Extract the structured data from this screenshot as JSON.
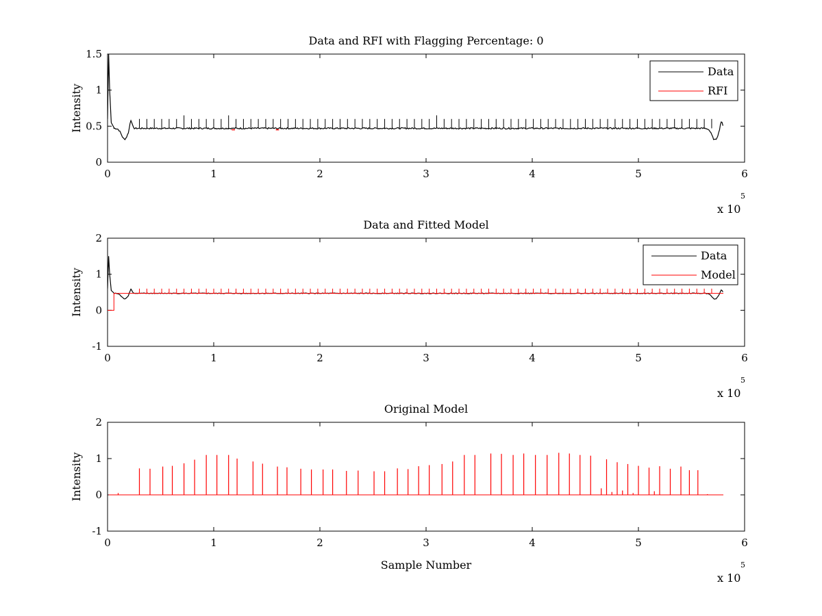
{
  "chart_data": [
    {
      "type": "line",
      "title": "Data and RFI with Flagging Percentage: 0",
      "xlabel": "",
      "ylabel": "Intensity",
      "xlim": [
        0,
        600000
      ],
      "ylim": [
        0,
        1.5
      ],
      "xticks": [
        0,
        1,
        2,
        3,
        4,
        5,
        6
      ],
      "yticks": [
        "0",
        "0.5",
        "1",
        "1.5"
      ],
      "x_multiplier": {
        "text": "x 10",
        "exp": "5"
      },
      "legend": {
        "position": "top-right",
        "entries": [
          "Data",
          "RFI"
        ]
      },
      "grid": false,
      "series": [
        {
          "name": "Data",
          "color": "#000000",
          "baseline": 0.47,
          "x_end": 580000,
          "initial_spike": {
            "x": [
              0,
              1000,
              2000,
              3500,
              6000
            ],
            "y": [
              0.6,
              1.5,
              1.0,
              0.55,
              0.48
            ]
          },
          "dips": [
            {
              "x": 16000,
              "depth": 0.15
            },
            {
              "x": 572000,
              "depth": 0.16
            }
          ],
          "bumps": [
            {
              "x": 22000,
              "y": 0.6
            },
            {
              "x": 578000,
              "y": 0.58
            }
          ],
          "spikes": {
            "start": 30000,
            "step": 7000,
            "heights": [
              0.6,
              0.6,
              0.6,
              0.6,
              0.6,
              0.6,
              0.65,
              0.6,
              0.6,
              0.6,
              0.6,
              0.6,
              0.65,
              0.6,
              0.6,
              0.6,
              0.6,
              0.6,
              0.6,
              0.6,
              0.6,
              0.6,
              0.6,
              0.6,
              0.6,
              0.6,
              0.6,
              0.6,
              0.6,
              0.6,
              0.6,
              0.6,
              0.6,
              0.6,
              0.6,
              0.6,
              0.6,
              0.6,
              0.6,
              0.6,
              0.65,
              0.6,
              0.6,
              0.6,
              0.6,
              0.6,
              0.6,
              0.6,
              0.6,
              0.6,
              0.6,
              0.6,
              0.6,
              0.6,
              0.6,
              0.6,
              0.6,
              0.6,
              0.6,
              0.6,
              0.6,
              0.6,
              0.6,
              0.6,
              0.6,
              0.6,
              0.6,
              0.6,
              0.6,
              0.6,
              0.6,
              0.6,
              0.6,
              0.6,
              0.6,
              0.6,
              0.6,
              0.6
            ]
          }
        },
        {
          "name": "RFI",
          "color": "#ff0000",
          "segments": [
            {
              "x": [
                117000,
                120000
              ],
              "y": 0.45
            },
            {
              "x": 160000,
              "y": 0.45
            }
          ]
        }
      ]
    },
    {
      "type": "line",
      "title": "Data and Fitted Model",
      "xlabel": "",
      "ylabel": "Intensity",
      "xlim": [
        0,
        600000
      ],
      "ylim": [
        -1,
        2
      ],
      "xticks": [
        0,
        1,
        2,
        3,
        4,
        5,
        6
      ],
      "yticks": [
        "-1",
        "0",
        "1",
        "2"
      ],
      "x_multiplier": {
        "text": "x 10",
        "exp": "5"
      },
      "legend": {
        "position": "top-right",
        "entries": [
          "Data",
          "Model"
        ]
      },
      "grid": false,
      "series": [
        {
          "name": "Data",
          "color": "#000000",
          "baseline": 0.47,
          "x_end": 580000,
          "initial_spike": {
            "x": [
              0,
              1000,
              2000,
              3500,
              6000
            ],
            "y": [
              0.6,
              1.5,
              1.0,
              0.55,
              0.48
            ]
          },
          "dips": [
            {
              "x": 16000,
              "depth": 0.15
            },
            {
              "x": 572000,
              "depth": 0.16
            }
          ],
          "bumps": [
            {
              "x": 22000,
              "y": 0.6
            },
            {
              "x": 578000,
              "y": 0.58
            }
          ]
        },
        {
          "name": "Model",
          "color": "#ff0000",
          "step": {
            "x_start": 0,
            "x_jump": 6000,
            "y_before": 0.0,
            "y_after": 0.47
          },
          "x_end": 580000,
          "spike_height": 0.6,
          "spikes_start": 30000,
          "spikes_step": 7000
        }
      ]
    },
    {
      "type": "line",
      "title": "Original Model",
      "xlabel": "Sample Number",
      "ylabel": "Intensity",
      "xlim": [
        0,
        600000
      ],
      "ylim": [
        -1,
        2
      ],
      "xticks": [
        0,
        1,
        2,
        3,
        4,
        5,
        6
      ],
      "yticks": [
        "-1",
        "0",
        "1",
        "2"
      ],
      "x_multiplier": {
        "text": "x 10",
        "exp": "5"
      },
      "legend": null,
      "grid": false,
      "series": [
        {
          "name": "",
          "color": "#ff0000",
          "baseline": 0.0,
          "x_start": 1000,
          "x_end": 580000,
          "spikes": [
            {
              "x": 10000,
              "y": 0.05
            },
            {
              "x": 30000,
              "y": 0.73
            },
            {
              "x": 40000,
              "y": 0.72
            },
            {
              "x": 52000,
              "y": 0.78
            },
            {
              "x": 61000,
              "y": 0.8
            },
            {
              "x": 72000,
              "y": 0.87
            },
            {
              "x": 82000,
              "y": 0.97
            },
            {
              "x": 93000,
              "y": 1.1
            },
            {
              "x": 103000,
              "y": 1.1
            },
            {
              "x": 114000,
              "y": 1.1
            },
            {
              "x": 122000,
              "y": 1.0
            },
            {
              "x": 137000,
              "y": 0.92
            },
            {
              "x": 146000,
              "y": 0.86
            },
            {
              "x": 160000,
              "y": 0.78
            },
            {
              "x": 169000,
              "y": 0.76
            },
            {
              "x": 182000,
              "y": 0.72
            },
            {
              "x": 192000,
              "y": 0.7
            },
            {
              "x": 203000,
              "y": 0.7
            },
            {
              "x": 212000,
              "y": 0.7
            },
            {
              "x": 225000,
              "y": 0.66
            },
            {
              "x": 236000,
              "y": 0.67
            },
            {
              "x": 251000,
              "y": 0.65
            },
            {
              "x": 261000,
              "y": 0.65
            },
            {
              "x": 273000,
              "y": 0.73
            },
            {
              "x": 283000,
              "y": 0.71
            },
            {
              "x": 293000,
              "y": 0.79
            },
            {
              "x": 303000,
              "y": 0.82
            },
            {
              "x": 315000,
              "y": 0.85
            },
            {
              "x": 325000,
              "y": 0.92
            },
            {
              "x": 336000,
              "y": 1.1
            },
            {
              "x": 346000,
              "y": 1.1
            },
            {
              "x": 361000,
              "y": 1.14
            },
            {
              "x": 371000,
              "y": 1.13
            },
            {
              "x": 382000,
              "y": 1.1
            },
            {
              "x": 392000,
              "y": 1.14
            },
            {
              "x": 403000,
              "y": 1.1
            },
            {
              "x": 414000,
              "y": 1.1
            },
            {
              "x": 425000,
              "y": 1.16
            },
            {
              "x": 435000,
              "y": 1.14
            },
            {
              "x": 445000,
              "y": 1.1
            },
            {
              "x": 455000,
              "y": 1.08
            },
            {
              "x": 465000,
              "y": 0.18
            },
            {
              "x": 470000,
              "y": 0.98
            },
            {
              "x": 480000,
              "y": 0.9
            },
            {
              "x": 490000,
              "y": 0.85
            },
            {
              "x": 500000,
              "y": 0.8
            },
            {
              "x": 510000,
              "y": 0.75
            },
            {
              "x": 520000,
              "y": 0.79
            },
            {
              "x": 530000,
              "y": 0.72
            },
            {
              "x": 540000,
              "y": 0.78
            },
            {
              "x": 548000,
              "y": 0.68
            },
            {
              "x": 556000,
              "y": 0.68
            },
            {
              "x": 565000,
              "y": 0.02
            },
            {
              "x": 475000,
              "y": 0.08
            },
            {
              "x": 485000,
              "y": 0.12
            },
            {
              "x": 495000,
              "y": 0.05
            },
            {
              "x": 515000,
              "y": 0.1
            }
          ]
        }
      ]
    }
  ]
}
